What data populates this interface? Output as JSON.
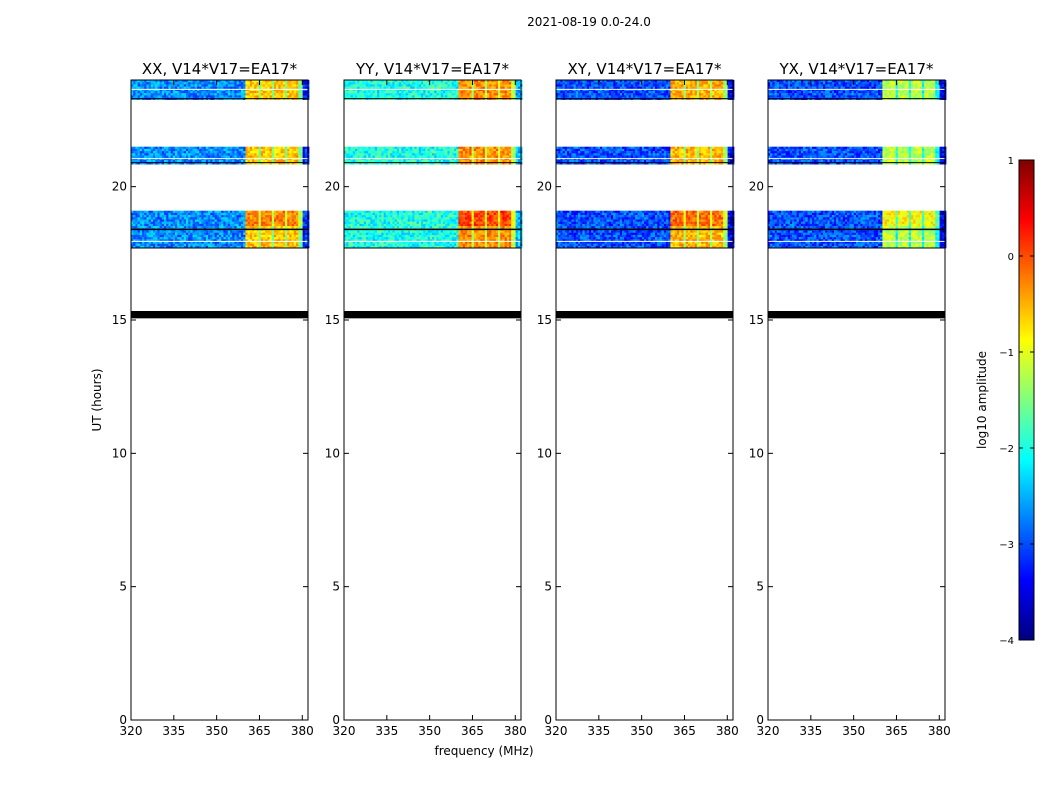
{
  "chart_data": {
    "type": "heatmap",
    "suptitle": "2021-08-19 0.0-24.0",
    "xlabel": "frequency (MHz)",
    "ylabel": "UT (hours)",
    "xlim": [
      320,
      382
    ],
    "ylim": [
      0,
      24
    ],
    "xticks": [
      320,
      335,
      350,
      365,
      380
    ],
    "yticks": [
      0,
      5,
      10,
      15,
      20
    ],
    "panels": [
      {
        "title": "XX, V14*V17=EA17*",
        "base_log10": -2.7,
        "band_log10": -0.6
      },
      {
        "title": "YY, V14*V17=EA17*",
        "base_log10": -2.0,
        "band_log10": -0.3
      },
      {
        "title": "XY, V14*V17=EA17*",
        "base_log10": -3.0,
        "band_log10": -0.5
      },
      {
        "title": "YX, V14*V17=EA17*",
        "base_log10": -3.0,
        "band_log10": -1.2
      }
    ],
    "data_time_blocks_hours": [
      [
        23.3,
        24.0
      ],
      [
        20.9,
        21.5
      ],
      [
        17.7,
        19.1
      ]
    ],
    "flagged_block_hours": [
      15.1,
      15.3
    ],
    "strong_band_mhz": [
      360,
      379.5
    ],
    "strong_channel_blocks_mhz": [
      [
        360,
        364
      ],
      [
        365,
        369
      ],
      [
        370,
        373.5
      ],
      [
        374.5,
        378
      ]
    ],
    "black_line_hours": [
      18.4
    ],
    "white_line_hours": [
      23.65,
      21.05,
      17.95
    ],
    "colorbar": {
      "label": "log10 amplitude",
      "vmin": -4,
      "vmax": 1,
      "ticks": [
        "1",
        "0",
        "−1",
        "−2",
        "−3",
        "−4"
      ],
      "cmap": [
        "#00007f",
        "#0000ff",
        "#007fff",
        "#00ffff",
        "#7fff7f",
        "#ffff00",
        "#ff7f00",
        "#ff0000",
        "#7f0000"
      ]
    }
  }
}
